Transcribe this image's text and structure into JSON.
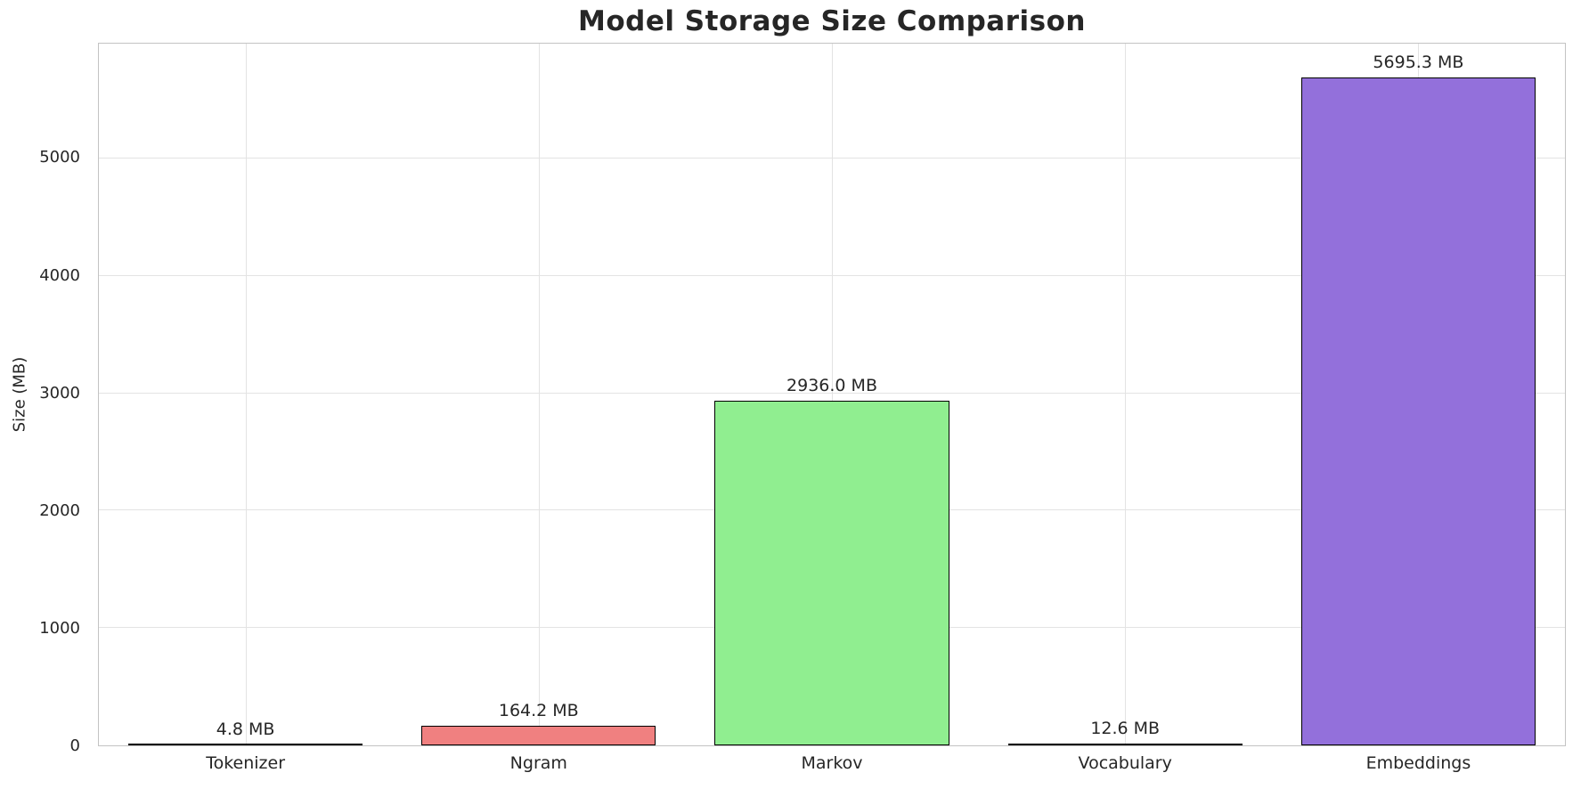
{
  "chart_data": {
    "type": "bar",
    "title": "Model Storage Size Comparison",
    "xlabel": "",
    "ylabel": "Size (MB)",
    "categories": [
      "Tokenizer",
      "Ngram",
      "Markov",
      "Vocabulary",
      "Embeddings"
    ],
    "values": [
      4.8,
      164.2,
      2936.0,
      12.6,
      5695.3
    ],
    "bar_labels": [
      "4.8 MB",
      "164.2 MB",
      "2936.0 MB",
      "12.6 MB",
      "5695.3 MB"
    ],
    "bar_colors": [
      "#87CEEB",
      "#F08080",
      "#90EE90",
      "#FFD700",
      "#9370DB"
    ],
    "bar_edge_color": "#000000",
    "yticks": [
      0,
      1000,
      2000,
      3000,
      4000,
      5000
    ],
    "ylim": [
      0,
      5980
    ],
    "grid": true,
    "grid_color": "#e3e3e3",
    "legend": "none"
  }
}
